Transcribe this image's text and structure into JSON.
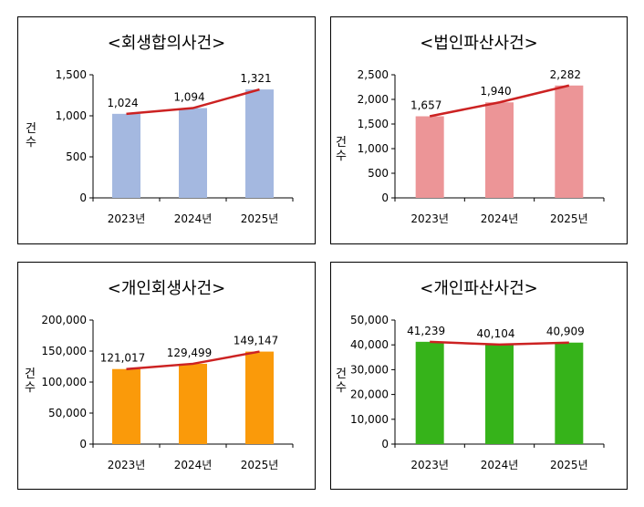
{
  "chart_data": [
    {
      "type": "bar",
      "title": "<회생합의사건>",
      "ylabel": "건수",
      "categories": [
        "2023년",
        "2024년",
        "2025년"
      ],
      "values": [
        1024,
        1094,
        1321
      ],
      "value_labels": [
        "1,024",
        "1,094",
        "1,321"
      ],
      "ylim": [
        0,
        1500
      ],
      "yticks": [
        0,
        500,
        1000,
        1500
      ],
      "ytick_labels": [
        "0",
        "500",
        "1,000",
        "1,500"
      ],
      "bar_color": "#a4b8e0",
      "line_color": "#cc2222",
      "overlay": "line"
    },
    {
      "type": "bar",
      "title": "<법인파산사건>",
      "ylabel": "건수",
      "categories": [
        "2023년",
        "2024년",
        "2025년"
      ],
      "values": [
        1657,
        1940,
        2282
      ],
      "value_labels": [
        "1,657",
        "1,940",
        "2,282"
      ],
      "ylim": [
        0,
        2500
      ],
      "yticks": [
        0,
        500,
        1000,
        1500,
        2000,
        2500
      ],
      "ytick_labels": [
        "0",
        "500",
        "1,000",
        "1,500",
        "2,000",
        "2,500"
      ],
      "bar_color": "#ec9597",
      "line_color": "#cc2222",
      "overlay": "line"
    },
    {
      "type": "bar",
      "title": "<개인회생사건>",
      "ylabel": "건수",
      "categories": [
        "2023년",
        "2024년",
        "2025년"
      ],
      "values": [
        121017,
        129499,
        149147
      ],
      "value_labels": [
        "121,017",
        "129,499",
        "149,147"
      ],
      "ylim": [
        0,
        200000
      ],
      "yticks": [
        0,
        50000,
        100000,
        150000,
        200000
      ],
      "ytick_labels": [
        "0",
        "50,000",
        "100,000",
        "150,000",
        "200,000"
      ],
      "bar_color": "#fa9a0a",
      "line_color": "#cc2222",
      "overlay": "line"
    },
    {
      "type": "bar",
      "title": "<개인파산사건>",
      "ylabel": "건수",
      "categories": [
        "2023년",
        "2024년",
        "2025년"
      ],
      "values": [
        41239,
        40104,
        40909
      ],
      "value_labels": [
        "41,239",
        "40,104",
        "40,909"
      ],
      "ylim": [
        0,
        50000
      ],
      "yticks": [
        0,
        10000,
        20000,
        30000,
        40000,
        50000
      ],
      "ytick_labels": [
        "0",
        "10,000",
        "20,000",
        "30,000",
        "40,000",
        "50,000"
      ],
      "bar_color": "#36b31a",
      "line_color": "#cc2222",
      "overlay": "line"
    }
  ]
}
